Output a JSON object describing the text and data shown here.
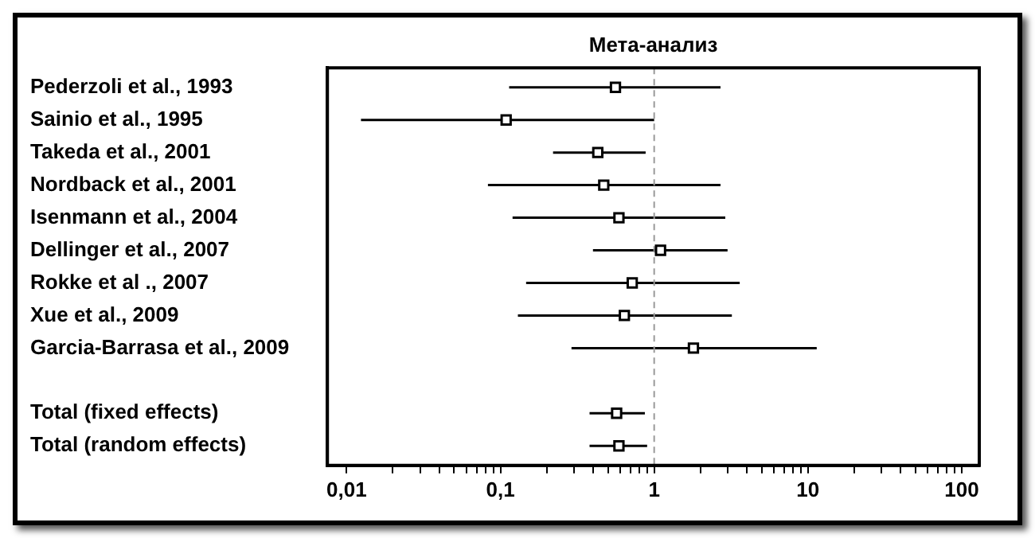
{
  "chart_data": {
    "type": "scatter",
    "orientation": "horizontal",
    "title": "Мета-анализ",
    "categories": [
      "Pederzoli et al., 1993",
      "Sainio et al., 1995",
      "Takeda et al., 2001",
      "Nordback et al., 2001",
      "Isenmann et al., 2004",
      "Dellinger et al., 2007",
      "Rokke et al ., 2007",
      "Xue et al., 2009",
      "Garcia-Barrasa et al., 2009",
      null,
      "Total (fixed effects)",
      "Total (random effects)"
    ],
    "values": [
      0.56,
      0.109,
      0.43,
      0.47,
      0.59,
      1.1,
      0.72,
      0.64,
      1.8,
      null,
      0.57,
      0.59
    ],
    "errors": [
      [
        0.114,
        2.7
      ],
      [
        0.0124,
        1.0
      ],
      [
        0.22,
        0.88
      ],
      [
        0.083,
        2.7
      ],
      [
        0.12,
        2.9
      ],
      [
        0.4,
        3.0
      ],
      [
        0.147,
        3.6
      ],
      [
        0.13,
        3.2
      ],
      [
        0.29,
        11.4
      ],
      null,
      [
        0.38,
        0.87
      ],
      [
        0.38,
        0.9
      ]
    ],
    "color": "#000000",
    "marker": "square",
    "log": "x",
    "grid": false,
    "legend": false,
    "xlim": [
      0.0075,
      130
    ],
    "xticks": [
      {
        "value": 0.01,
        "label": "0,01"
      },
      {
        "value": 0.02,
        "label": null
      },
      {
        "value": 0.03,
        "label": null
      },
      {
        "value": 0.04,
        "label": null
      },
      {
        "value": 0.05,
        "label": null
      },
      {
        "value": 0.06,
        "label": null
      },
      {
        "value": 0.07,
        "label": null
      },
      {
        "value": 0.08,
        "label": null
      },
      {
        "value": 0.09,
        "label": null
      },
      {
        "value": 0.1,
        "label": "0,1"
      },
      {
        "value": 0.2,
        "label": null
      },
      {
        "value": 0.3,
        "label": null
      },
      {
        "value": 0.4,
        "label": null
      },
      {
        "value": 0.5,
        "label": null
      },
      {
        "value": 0.6,
        "label": null
      },
      {
        "value": 0.7,
        "label": null
      },
      {
        "value": 0.8,
        "label": null
      },
      {
        "value": 0.9,
        "label": null
      },
      1,
      {
        "value": 2,
        "label": null
      },
      {
        "value": 3,
        "label": null
      },
      {
        "value": 4,
        "label": null
      },
      {
        "value": 5,
        "label": null
      },
      {
        "value": 6,
        "label": null
      },
      {
        "value": 7,
        "label": null
      },
      {
        "value": 8,
        "label": null
      },
      {
        "value": 9,
        "label": null
      },
      10,
      {
        "value": 20,
        "label": null
      },
      {
        "value": 30,
        "label": null
      },
      {
        "value": 40,
        "label": null
      },
      {
        "value": 50,
        "label": null
      },
      {
        "value": 60,
        "label": null
      },
      {
        "value": 70,
        "label": null
      },
      {
        "value": 80,
        "label": null
      },
      {
        "value": 90,
        "label": null
      },
      100
    ],
    "ref_lines": [
      {
        "axis": "x",
        "value": 1,
        "color": "#999999",
        "line_style": "dashed"
      }
    ]
  }
}
